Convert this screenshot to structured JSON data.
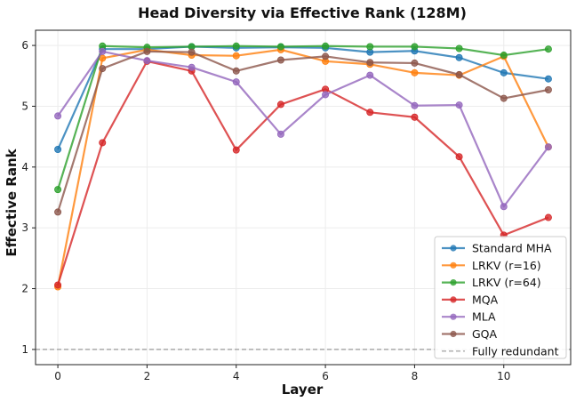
{
  "chart_data": {
    "type": "line",
    "title": "Head Diversity via Effective Rank (128M)",
    "xlabel": "Layer",
    "ylabel": "Effective Rank",
    "xlim": [
      -0.5,
      11.5
    ],
    "ylim": [
      0.75,
      6.25
    ],
    "xticks": [
      0,
      2,
      4,
      6,
      8,
      10
    ],
    "yticks": [
      1,
      2,
      3,
      4,
      5,
      6
    ],
    "grid": true,
    "legend_position": "lower-right",
    "x": [
      0,
      1,
      2,
      3,
      4,
      5,
      6,
      7,
      8,
      9,
      10,
      11
    ],
    "series": [
      {
        "name": "Standard MHA",
        "color": "#1f77b4",
        "values": [
          4.29,
          5.94,
          5.94,
          5.98,
          5.96,
          5.97,
          5.96,
          5.89,
          5.91,
          5.8,
          5.55,
          5.45
        ]
      },
      {
        "name": "LRKV (r=16)",
        "color": "#ff7f0e",
        "values": [
          2.03,
          5.79,
          5.93,
          5.84,
          5.83,
          5.93,
          5.74,
          5.69,
          5.55,
          5.51,
          5.82,
          4.33
        ]
      },
      {
        "name": "LRKV (r=64)",
        "color": "#2ca02c",
        "values": [
          3.63,
          5.99,
          5.97,
          5.98,
          5.99,
          5.98,
          5.99,
          5.98,
          5.98,
          5.95,
          5.84,
          5.94
        ]
      },
      {
        "name": "MQA",
        "color": "#d62728",
        "values": [
          2.06,
          4.4,
          5.74,
          5.58,
          4.28,
          5.03,
          5.28,
          4.9,
          4.82,
          4.17,
          2.88,
          3.17
        ]
      },
      {
        "name": "MLA",
        "color": "#9467bd",
        "values": [
          4.84,
          5.9,
          5.75,
          5.64,
          5.4,
          4.54,
          5.19,
          5.51,
          5.01,
          5.02,
          3.35,
          4.33
        ]
      },
      {
        "name": "GQA",
        "color": "#8c564b",
        "values": [
          3.26,
          5.62,
          5.9,
          5.89,
          5.58,
          5.76,
          5.82,
          5.72,
          5.71,
          5.52,
          5.13,
          5.27
        ]
      }
    ],
    "reference_line": {
      "name": "Fully redundant",
      "y": 1,
      "color": "#999999",
      "style": "dashed"
    }
  }
}
